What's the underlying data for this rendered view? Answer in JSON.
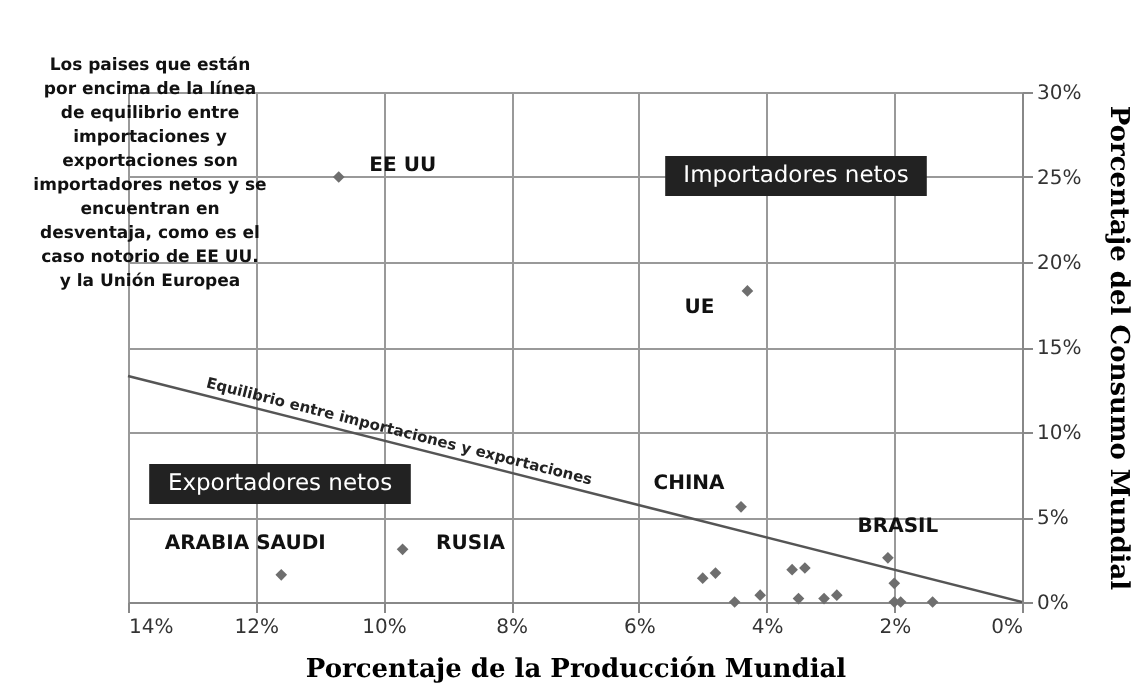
{
  "chart_data": {
    "type": "scatter",
    "xlabel": "Porcentaje de la Producción Mundial",
    "ylabel": "Porcentaje del Consumo Mundial",
    "xlim": [
      14,
      0
    ],
    "ylim": [
      0,
      30
    ],
    "xticks": [
      {
        "value": 14,
        "label": "14%"
      },
      {
        "value": 12,
        "label": "12%"
      },
      {
        "value": 10,
        "label": "10%"
      },
      {
        "value": 8,
        "label": "8%"
      },
      {
        "value": 6,
        "label": "6%"
      },
      {
        "value": 4,
        "label": "4%"
      },
      {
        "value": 2,
        "label": "2%"
      },
      {
        "value": 0,
        "label": "0%"
      }
    ],
    "yticks": [
      {
        "value": 0,
        "label": "0%"
      },
      {
        "value": 5,
        "label": "5%"
      },
      {
        "value": 10,
        "label": "10%"
      },
      {
        "value": 15,
        "label": "15%"
      },
      {
        "value": 20,
        "label": "20%"
      },
      {
        "value": 25,
        "label": "25%"
      },
      {
        "value": 30,
        "label": "30%"
      }
    ],
    "grid": true,
    "marker": "diamond",
    "series": [
      {
        "color": "#6e6e6e",
        "x": [
          10.7,
          4.3,
          11.6,
          9.7,
          4.4,
          2.1,
          5.0,
          4.8,
          4.5,
          4.1,
          3.6,
          3.4,
          3.5,
          3.1,
          2.9,
          2.0,
          2.0,
          1.9,
          1.4
        ],
        "values": [
          25,
          18.3,
          1.6,
          3.1,
          5.6,
          2.6,
          1.4,
          1.7,
          0,
          0.4,
          1.9,
          2.0,
          0.2,
          0.2,
          0.4,
          1.1,
          0,
          0,
          0
        ]
      },
      {
        "type": "line",
        "marker": "none",
        "name": "Equilibrio entre importaciones y exportaciones",
        "color": "#555555",
        "x": [
          14,
          0
        ],
        "values": [
          13.3,
          0
        ]
      }
    ],
    "annotations": [
      "Los paises que están por encima de la línea de equilibrio entre importaciones y exportaciones son importadores netos y se encuentran en desventaja, como es el caso notorio de EE UU. y la Unión Europea",
      {
        "text": "EE UU",
        "x": 10.7,
        "y": 25
      },
      {
        "text": "UE",
        "x": 4.3,
        "y": 18.3
      },
      {
        "text": "ARABIA SAUDI",
        "x": 11.6,
        "y": 1.6
      },
      {
        "text": "RUSIA",
        "x": 9.7,
        "y": 3.1
      },
      {
        "text": "CHINA",
        "x": 4.4,
        "y": 5.6
      },
      {
        "text": "BRASIL",
        "x": 2.1,
        "y": 2.6
      },
      "Importadores netos",
      "Exportadores netos"
    ]
  }
}
